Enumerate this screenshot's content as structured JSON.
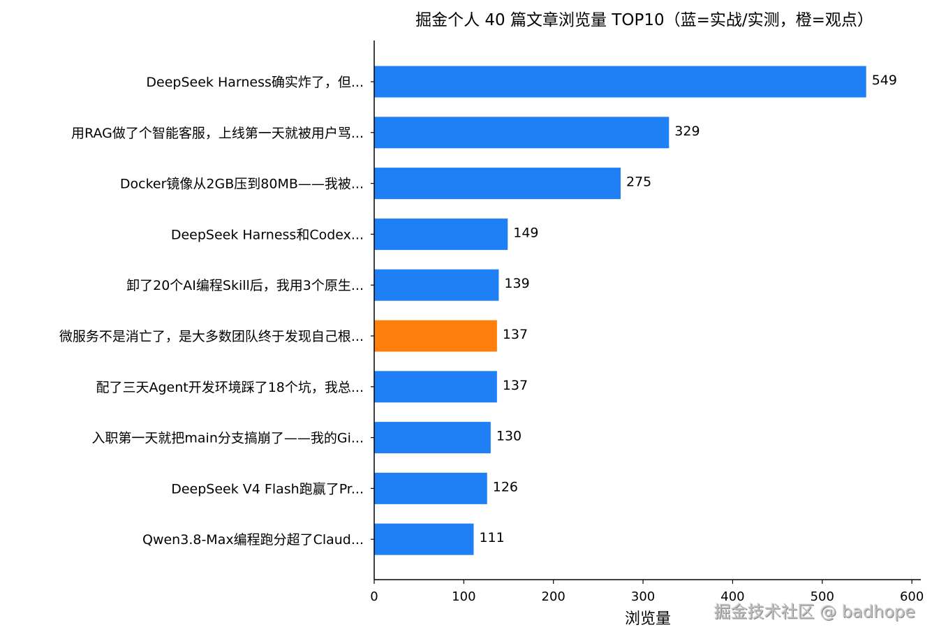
{
  "chart_data": {
    "type": "bar",
    "orientation": "horizontal",
    "title": "掘金个人 40 篇文章浏览量 TOP10（蓝=实战/实测，橙=观点）",
    "xlabel": "浏览量",
    "ylabel": "",
    "xlim": [
      0,
      610
    ],
    "xticks": [
      0,
      100,
      200,
      300,
      400,
      500,
      600
    ],
    "grid": false,
    "categories": [
      "DeepSeek Harness确实炸了，但...",
      "用RAG做了个智能客服，上线第一天就被用户骂...",
      "Docker镜像从2GB压到80MB——我被...",
      "DeepSeek Harness和Codex...",
      "卸了20个AI编程Skill后，我用3个原生...",
      "微服务不是消亡了，是大多数团队终于发现自己根...",
      "配了三天Agent开发环境踩了18个坑，我总...",
      "入职第一天就把main分支搞崩了——我的Gi...",
      "DeepSeek V4 Flash跑赢了Pr...",
      "Qwen3.8-Max编程跑分超了Claud..."
    ],
    "values": [
      549,
      329,
      275,
      149,
      139,
      137,
      137,
      130,
      126,
      111
    ],
    "bar_groups": [
      "实战/实测",
      "实战/实测",
      "实战/实测",
      "实战/实测",
      "实战/实测",
      "观点",
      "实战/实测",
      "实战/实测",
      "实战/实测",
      "实战/实测"
    ],
    "group_colors": {
      "实战/实测": "#1f7ff5",
      "观点": "#ff7f0e"
    }
  },
  "watermark": "掘金技术社区 @ badhope"
}
